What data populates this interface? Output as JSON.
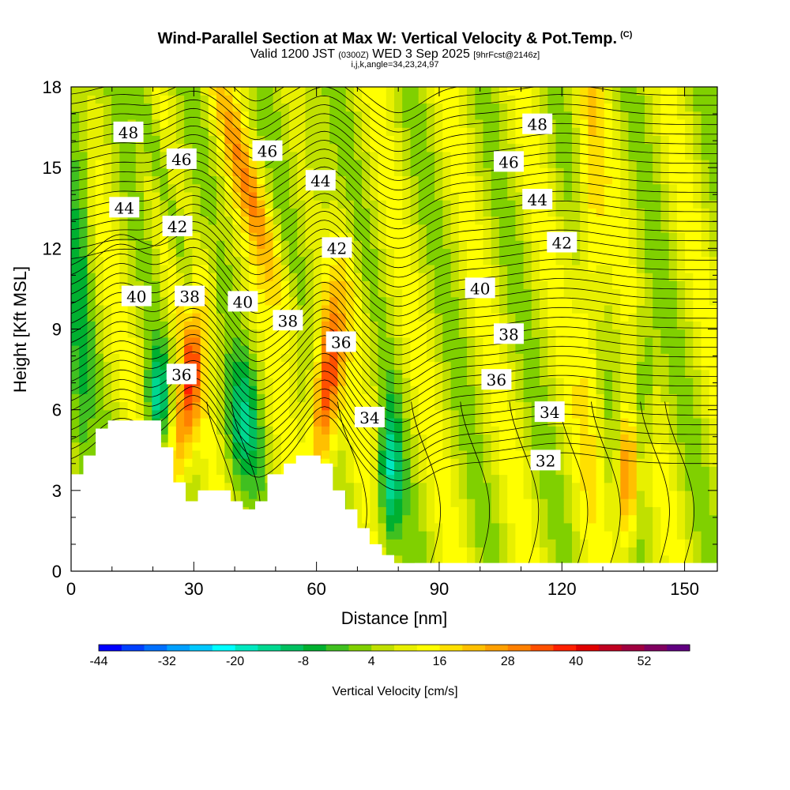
{
  "title": {
    "main": "Wind-Parallel Section at Max W: Vertical Velocity & Pot.Temp.",
    "copyright": "(C)",
    "valid_prefix": "Valid 1200 JST",
    "valid_utc": "(0300Z)",
    "valid_date": "WED 3 Sep 2025",
    "forecast": "[9hrFcst@2146z]",
    "indices": "i,j,k,angle=34,23,24,97"
  },
  "chart_data": {
    "type": "heatmap",
    "xlabel": "Distance [nm]",
    "ylabel": "Height [Kft MSL]",
    "xlim": [
      0,
      158
    ],
    "ylim": [
      0,
      18
    ],
    "x_ticks": [
      0,
      30,
      60,
      90,
      120,
      150
    ],
    "y_ticks": [
      0,
      3,
      6,
      9,
      12,
      15,
      18
    ],
    "colorbar": {
      "label": "Vertical Velocity [cm/s]",
      "tick_labels": [
        "-44",
        "-32",
        "-20",
        "-8",
        "4",
        "16",
        "28",
        "40",
        "52"
      ],
      "colors": [
        "#0000ff",
        "#0040ff",
        "#0070ff",
        "#00a0ff",
        "#00c8ff",
        "#00ffff",
        "#00e8c0",
        "#00d890",
        "#00c060",
        "#00b030",
        "#40c020",
        "#80d000",
        "#c0e000",
        "#e8f000",
        "#ffff00",
        "#ffe000",
        "#ffc000",
        "#ffa000",
        "#ff8000",
        "#ff5000",
        "#ff2000",
        "#e00000",
        "#c00020",
        "#a00040",
        "#800060",
        "#600080"
      ]
    },
    "contour_field": "Potential Temperature",
    "contour_labels": [
      {
        "text": "48",
        "x": 14,
        "y": 16.3
      },
      {
        "text": "46",
        "x": 27,
        "y": 15.3
      },
      {
        "text": "46",
        "x": 48,
        "y": 15.6
      },
      {
        "text": "44",
        "x": 13,
        "y": 13.5
      },
      {
        "text": "42",
        "x": 26,
        "y": 12.8
      },
      {
        "text": "44",
        "x": 61,
        "y": 14.5
      },
      {
        "text": "42",
        "x": 65,
        "y": 12.0
      },
      {
        "text": "40",
        "x": 16,
        "y": 10.2
      },
      {
        "text": "38",
        "x": 29,
        "y": 10.2
      },
      {
        "text": "40",
        "x": 42,
        "y": 10.0
      },
      {
        "text": "38",
        "x": 53,
        "y": 9.3
      },
      {
        "text": "36",
        "x": 27,
        "y": 7.3
      },
      {
        "text": "36",
        "x": 66,
        "y": 8.5
      },
      {
        "text": "34",
        "x": 73,
        "y": 5.7
      },
      {
        "text": "48",
        "x": 114,
        "y": 16.6
      },
      {
        "text": "46",
        "x": 107,
        "y": 15.2
      },
      {
        "text": "44",
        "x": 114,
        "y": 13.8
      },
      {
        "text": "42",
        "x": 120,
        "y": 12.2
      },
      {
        "text": "40",
        "x": 100,
        "y": 10.5
      },
      {
        "text": "38",
        "x": 107,
        "y": 8.8
      },
      {
        "text": "36",
        "x": 104,
        "y": 7.1
      },
      {
        "text": "34",
        "x": 117,
        "y": 5.9
      },
      {
        "text": "32",
        "x": 116,
        "y": 4.1
      }
    ],
    "terrain": [
      [
        0,
        3.6
      ],
      [
        3,
        3.6
      ],
      [
        3,
        4.3
      ],
      [
        6,
        4.3
      ],
      [
        6,
        5.3
      ],
      [
        9,
        5.3
      ],
      [
        9,
        5.6
      ],
      [
        22,
        5.6
      ],
      [
        22,
        4.6
      ],
      [
        25,
        4.6
      ],
      [
        25,
        3.3
      ],
      [
        28,
        3.3
      ],
      [
        28,
        2.6
      ],
      [
        31,
        2.6
      ],
      [
        31,
        3.0
      ],
      [
        39,
        3.0
      ],
      [
        39,
        2.6
      ],
      [
        42,
        2.6
      ],
      [
        42,
        2.3
      ],
      [
        45,
        2.3
      ],
      [
        45,
        2.6
      ],
      [
        48,
        2.6
      ],
      [
        48,
        3.6
      ],
      [
        52,
        3.6
      ],
      [
        52,
        4.0
      ],
      [
        55,
        4.0
      ],
      [
        55,
        4.3
      ],
      [
        61,
        4.3
      ],
      [
        61,
        4.0
      ],
      [
        64,
        4.0
      ],
      [
        64,
        3.0
      ],
      [
        67,
        3.0
      ],
      [
        67,
        2.3
      ],
      [
        70,
        2.3
      ],
      [
        70,
        1.6
      ],
      [
        73,
        1.6
      ],
      [
        73,
        1.0
      ],
      [
        76,
        1.0
      ],
      [
        76,
        0.6
      ],
      [
        79,
        0.6
      ],
      [
        79,
        0.3
      ],
      [
        84,
        0.3
      ],
      [
        84,
        0.3
      ],
      [
        158,
        0.3
      ]
    ]
  }
}
